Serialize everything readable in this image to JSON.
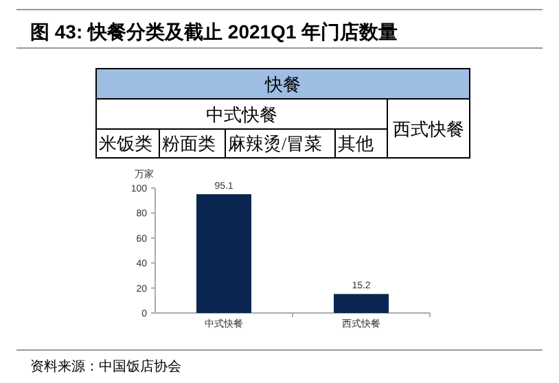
{
  "chart_data": {
    "type": "bar",
    "title": "图 43: 快餐分类及截止 2021Q1 年门店数量",
    "ylabel": "万家",
    "categories": [
      "中式快餐",
      "西式快餐"
    ],
    "values": [
      95.1,
      15.2
    ],
    "color": "#0b2650",
    "ylim": [
      0,
      100
    ],
    "yticks": [
      0,
      20,
      40,
      60,
      80,
      100
    ],
    "data_labels": true,
    "annotations": [
      "快餐",
      "中式快餐",
      "西式快餐",
      "米饭类",
      "粉面类",
      "麻辣烫/冒菜",
      "其他",
      "资料来源：中国饭店协会"
    ]
  }
}
